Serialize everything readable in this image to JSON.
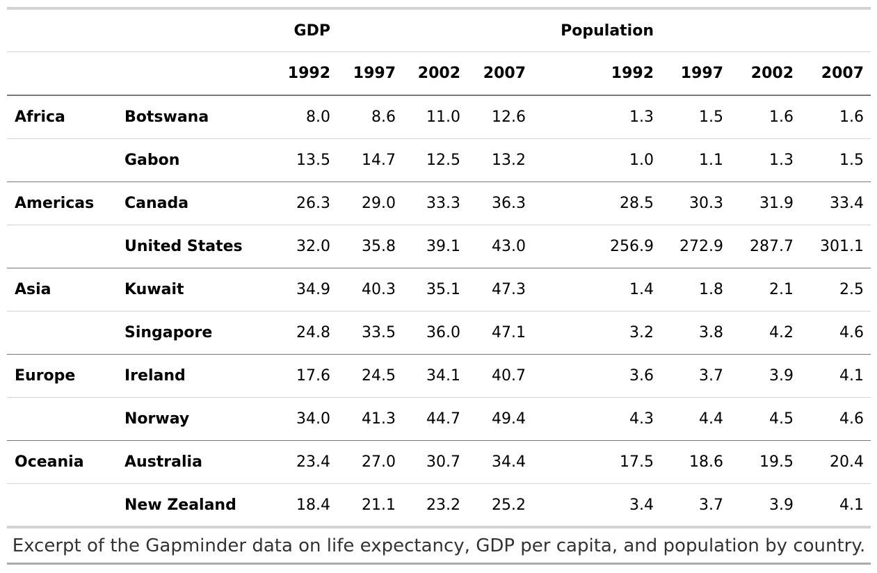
{
  "header": {
    "spanners": {
      "gdp": "GDP",
      "population": "Population"
    },
    "gdp_years": [
      "1992",
      "1997",
      "2002",
      "2007"
    ],
    "pop_years": [
      "1992",
      "1997",
      "2002",
      "2007"
    ]
  },
  "rows": [
    {
      "continent": "Africa",
      "country": "Botswana",
      "gdp": [
        "8.0",
        "8.6",
        "11.0",
        "12.6"
      ],
      "pop": [
        "1.3",
        "1.5",
        "1.6",
        "1.6"
      ]
    },
    {
      "continent": "",
      "country": "Gabon",
      "gdp": [
        "13.5",
        "14.7",
        "12.5",
        "13.2"
      ],
      "pop": [
        "1.0",
        "1.1",
        "1.3",
        "1.5"
      ]
    },
    {
      "continent": "Americas",
      "country": "Canada",
      "gdp": [
        "26.3",
        "29.0",
        "33.3",
        "36.3"
      ],
      "pop": [
        "28.5",
        "30.3",
        "31.9",
        "33.4"
      ]
    },
    {
      "continent": "",
      "country": "United States",
      "gdp": [
        "32.0",
        "35.8",
        "39.1",
        "43.0"
      ],
      "pop": [
        "256.9",
        "272.9",
        "287.7",
        "301.1"
      ]
    },
    {
      "continent": "Asia",
      "country": "Kuwait",
      "gdp": [
        "34.9",
        "40.3",
        "35.1",
        "47.3"
      ],
      "pop": [
        "1.4",
        "1.8",
        "2.1",
        "2.5"
      ]
    },
    {
      "continent": "",
      "country": "Singapore",
      "gdp": [
        "24.8",
        "33.5",
        "36.0",
        "47.1"
      ],
      "pop": [
        "3.2",
        "3.8",
        "4.2",
        "4.6"
      ]
    },
    {
      "continent": "Europe",
      "country": "Ireland",
      "gdp": [
        "17.6",
        "24.5",
        "34.1",
        "40.7"
      ],
      "pop": [
        "3.6",
        "3.7",
        "3.9",
        "4.1"
      ]
    },
    {
      "continent": "",
      "country": "Norway",
      "gdp": [
        "34.0",
        "41.3",
        "44.7",
        "49.4"
      ],
      "pop": [
        "4.3",
        "4.4",
        "4.5",
        "4.6"
      ]
    },
    {
      "continent": "Oceania",
      "country": "Australia",
      "gdp": [
        "23.4",
        "27.0",
        "30.7",
        "34.4"
      ],
      "pop": [
        "17.5",
        "18.6",
        "19.5",
        "20.4"
      ]
    },
    {
      "continent": "",
      "country": "New Zealand",
      "gdp": [
        "18.4",
        "21.1",
        "23.2",
        "25.2"
      ],
      "pop": [
        "3.4",
        "3.7",
        "3.9",
        "4.1"
      ]
    }
  ],
  "caption": "Excerpt of the Gapminder data on life expectancy, GDP per capita, and population by country."
}
